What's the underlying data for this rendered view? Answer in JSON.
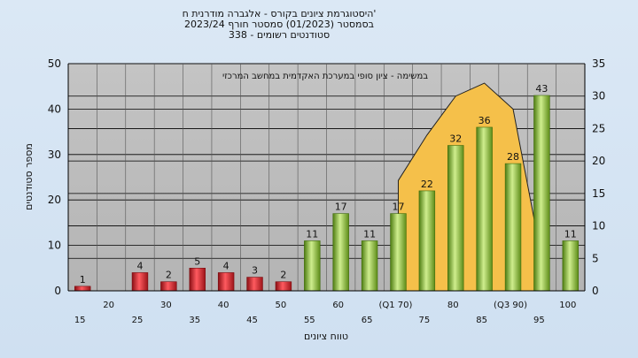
{
  "titles": {
    "line1": "היסטוגרמת ציונים בקורס - אלגברה מודרנית ח'",
    "line2": "בסמסטר  (01/2023)  סמסטר חורף  2023/24",
    "line3": "סטודנטים רשומים - 338"
  },
  "chart_data": {
    "type": "bar",
    "title": "היסטוגרמת ציונים בקורס - אלגברה מודרנית ח'",
    "xlabel": "טווח ציונים",
    "ylabel": "מספר סטודנטים",
    "ylim": [
      0,
      50
    ],
    "y2lim": [
      0,
      35
    ],
    "yticks": [
      0,
      10,
      20,
      30,
      40,
      50
    ],
    "y2ticks": [
      0,
      5,
      10,
      15,
      20,
      25,
      30,
      35
    ],
    "categories": [
      "15",
      "20",
      "25",
      "30",
      "35",
      "40",
      "45",
      "50",
      "55",
      "60",
      "65",
      "(Q1 70)",
      "75",
      "80",
      "85",
      "(Q3 90)",
      "95",
      "100"
    ],
    "values": [
      1,
      null,
      4,
      2,
      5,
      4,
      3,
      2,
      11,
      17,
      11,
      17,
      22,
      32,
      36,
      28,
      43,
      11
    ],
    "fail_color": "#d9262c",
    "pass_color": "#8fc23c",
    "area_color": "#f5c04a",
    "area_label": "במשימה - ציון סופי במערכת האקדמית במחשב המרכזי",
    "area_series": {
      "x_categories": [
        "(Q1 70)",
        "75",
        "80",
        "85",
        "(Q3 90)"
      ],
      "values_secondary_axis": [
        17,
        24,
        30,
        32,
        28
      ]
    },
    "grid": true,
    "legend": "none"
  }
}
